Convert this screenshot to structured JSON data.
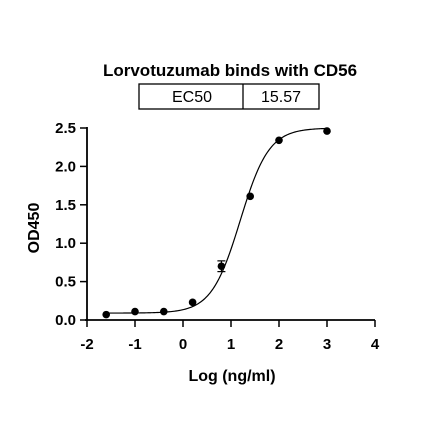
{
  "chart_data": {
    "type": "scatter",
    "title": "Lorvotuzumab binds with CD56",
    "xlabel": "Log (ng/ml)",
    "ylabel": "OD450",
    "xlim": [
      -2,
      4
    ],
    "ylim": [
      0,
      2.5
    ],
    "xticks": [
      "-2",
      "-1",
      "0",
      "1",
      "2",
      "3",
      "4"
    ],
    "yticks": [
      "0.0",
      "0.5",
      "1.0",
      "1.5",
      "2.0",
      "2.5"
    ],
    "ec50_table": {
      "label": "EC50",
      "value": "15.57"
    },
    "fit": {
      "bottom": 0.09,
      "top": 2.5,
      "log_ec50": 1.192,
      "hill": 1.45
    },
    "series": [
      {
        "points": [
          {
            "x": -1.6,
            "y": 0.07
          },
          {
            "x": -1.0,
            "y": 0.11
          },
          {
            "x": -0.4,
            "y": 0.11
          },
          {
            "x": 0.2,
            "y": 0.23
          },
          {
            "x": 0.8,
            "y": 0.7,
            "err": 0.07
          },
          {
            "x": 1.4,
            "y": 1.61
          },
          {
            "x": 2.0,
            "y": 2.34
          },
          {
            "x": 3.0,
            "y": 2.46
          }
        ]
      }
    ],
    "grid": false
  },
  "colors": {
    "ink": "#000000",
    "background": "#ffffff"
  }
}
